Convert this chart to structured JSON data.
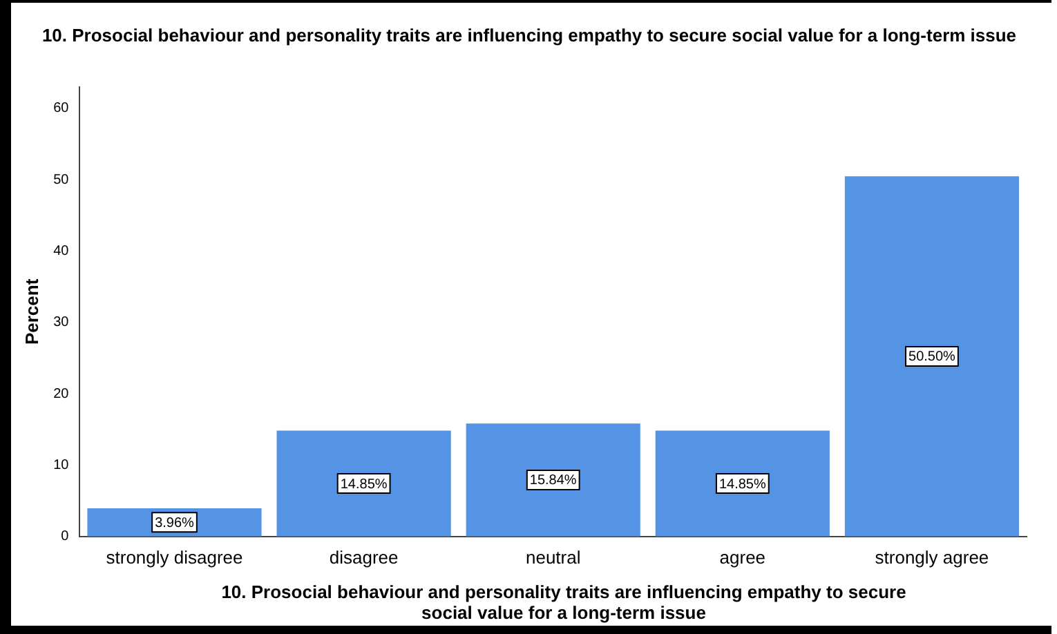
{
  "chart_data": {
    "type": "bar",
    "title": "10. Prosocial behaviour and personality traits are influencing empathy to secure social value for a long-term issue",
    "xlabel": "10. Prosocial behaviour and personality traits are influencing empathy to secure social value for a long-term issue",
    "ylabel": "Percent",
    "categories": [
      "strongly disagree",
      "disagree",
      "neutral",
      "agree",
      "strongly agree"
    ],
    "values": [
      3.96,
      14.85,
      15.84,
      14.85,
      50.5
    ],
    "value_labels": [
      "3.96%",
      "14.85%",
      "15.84%",
      "14.85%",
      "50.50%"
    ],
    "color": "#5594e5",
    "ylim": [
      0,
      63
    ],
    "yticks": [
      0,
      10,
      20,
      30,
      40,
      50,
      60
    ],
    "grid": false,
    "legend": false
  }
}
